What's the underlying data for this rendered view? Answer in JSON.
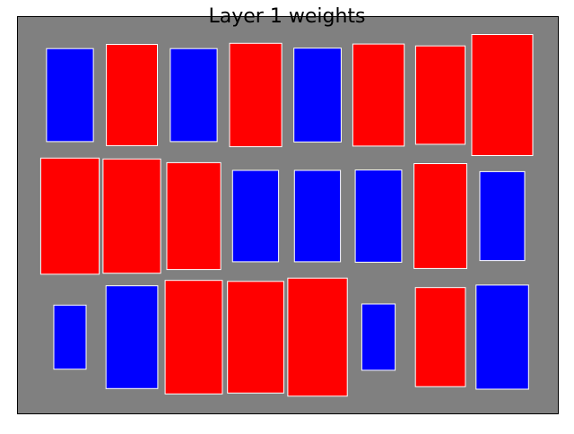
{
  "chart_data": {
    "type": "hinton",
    "title": "Layer 1 weights",
    "xlabel": "",
    "ylabel": "",
    "grid": false,
    "legend": "none",
    "max_abs_weight": 1.0,
    "rows": 3,
    "cols": 8,
    "weights": [
      [
        -0.59,
        0.7,
        -0.59,
        0.73,
        -0.6,
        0.71,
        0.66,
        1.0
      ],
      [
        0.92,
        0.89,
        0.78,
        -0.57,
        -0.57,
        -0.58,
        0.75,
        -0.54
      ],
      [
        -0.28,
        -0.72,
        0.88,
        0.85,
        0.95,
        -0.3,
        0.67,
        -0.74
      ]
    ],
    "colors": {
      "positive": "#ff0000",
      "negative": "#0000ff",
      "background": "#808080",
      "edge": "#ffffff"
    }
  }
}
